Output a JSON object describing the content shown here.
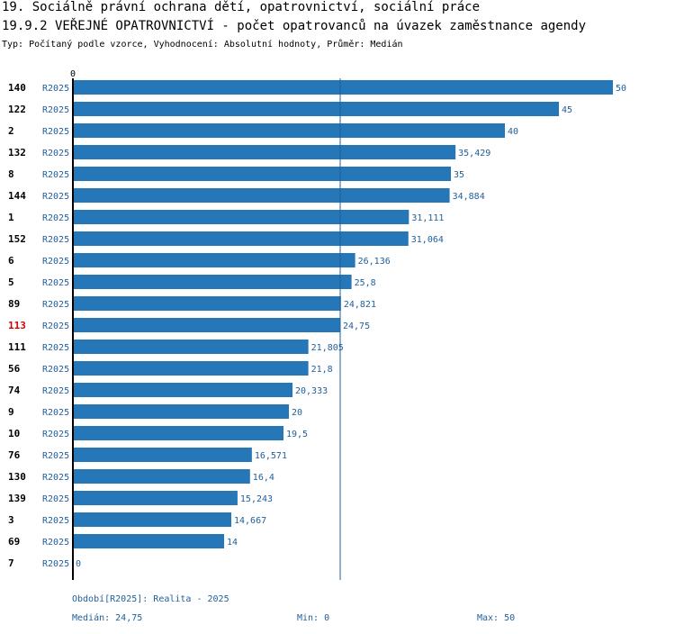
{
  "header": {
    "title1": "19. Sociálně právní ochrana dětí, opatrovnictví, sociální práce",
    "title2": "19.9.2 VEŘEJNÉ OPATROVNICTVÍ - počet opatrovanců na úvazek zaměstnance agendy",
    "subtitle": "Typ: Počítaný podle vzorce, Vyhodnocení: Absolutní hodnoty, Průměr: Medián"
  },
  "chart_data": {
    "type": "bar",
    "orientation": "horizontal",
    "axis_zero_label": "0",
    "xlim": [
      0,
      50
    ],
    "median": 24.75,
    "period_label": "R2025",
    "highlight_color": "#d40000",
    "bar_color": "#2677b8",
    "rows": [
      {
        "id": "140",
        "value": 50,
        "label": "50"
      },
      {
        "id": "122",
        "value": 45,
        "label": "45"
      },
      {
        "id": "2",
        "value": 40,
        "label": "40"
      },
      {
        "id": "132",
        "value": 35.429,
        "label": "35,429"
      },
      {
        "id": "8",
        "value": 35,
        "label": "35"
      },
      {
        "id": "144",
        "value": 34.884,
        "label": "34,884"
      },
      {
        "id": "1",
        "value": 31.111,
        "label": "31,111"
      },
      {
        "id": "152",
        "value": 31.064,
        "label": "31,064"
      },
      {
        "id": "6",
        "value": 26.136,
        "label": "26,136"
      },
      {
        "id": "5",
        "value": 25.8,
        "label": "25,8"
      },
      {
        "id": "89",
        "value": 24.821,
        "label": "24,821"
      },
      {
        "id": "113",
        "value": 24.75,
        "label": "24,75",
        "highlight": true
      },
      {
        "id": "111",
        "value": 21.805,
        "label": "21,805"
      },
      {
        "id": "56",
        "value": 21.8,
        "label": "21,8"
      },
      {
        "id": "74",
        "value": 20.333,
        "label": "20,333"
      },
      {
        "id": "9",
        "value": 20,
        "label": "20"
      },
      {
        "id": "10",
        "value": 19.5,
        "label": "19,5"
      },
      {
        "id": "76",
        "value": 16.571,
        "label": "16,571"
      },
      {
        "id": "130",
        "value": 16.4,
        "label": "16,4"
      },
      {
        "id": "139",
        "value": 15.243,
        "label": "15,243"
      },
      {
        "id": "3",
        "value": 14.667,
        "label": "14,667"
      },
      {
        "id": "69",
        "value": 14,
        "label": "14"
      },
      {
        "id": "7",
        "value": 0,
        "label": "0"
      }
    ]
  },
  "footer": {
    "period": "Období[R2025]: Realita - 2025",
    "median": "Medián: 24,75",
    "min": "Min: 0",
    "max": "Max: 50"
  }
}
